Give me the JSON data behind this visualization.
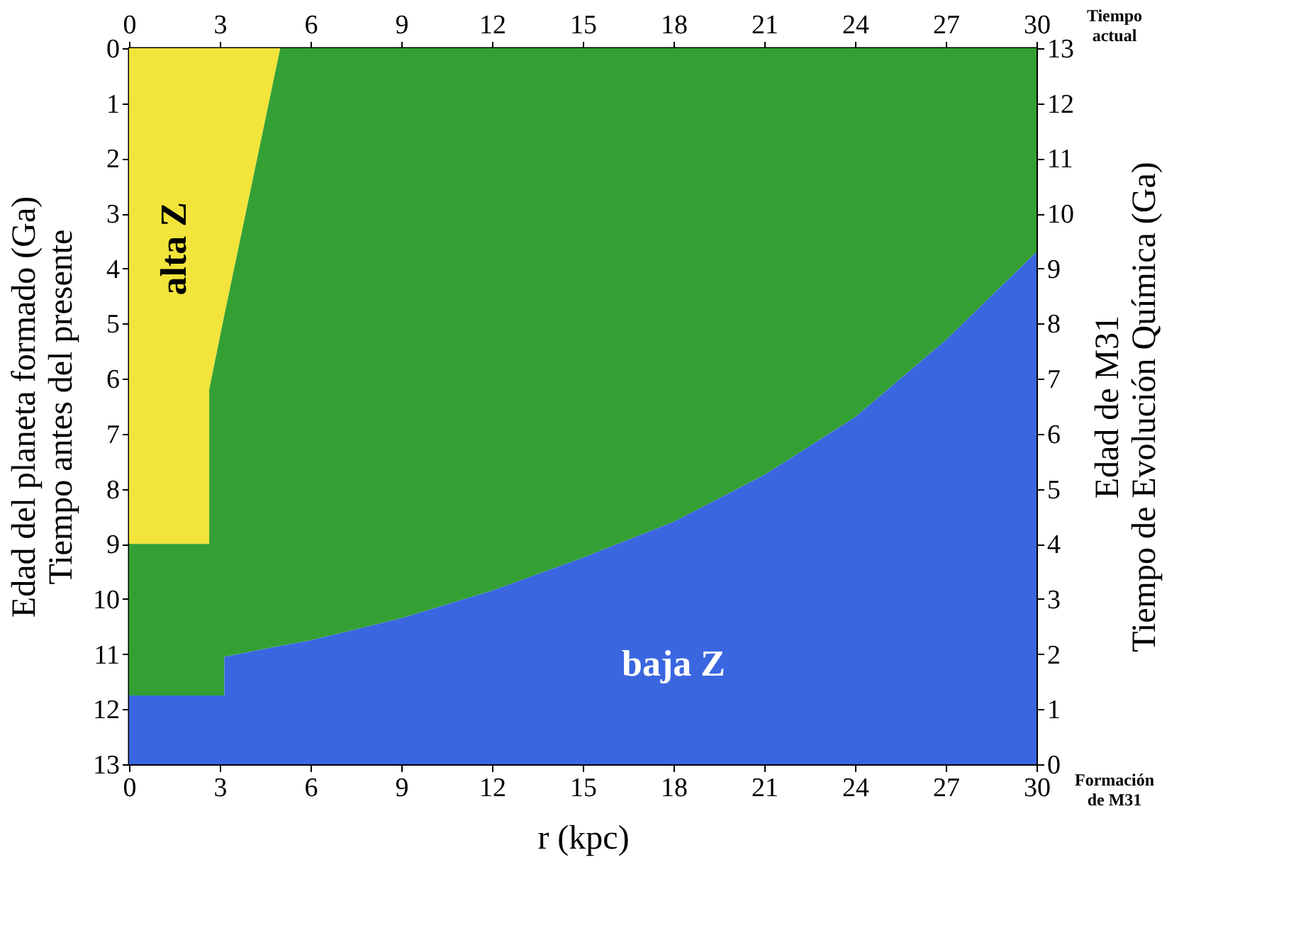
{
  "chart_data": {
    "type": "area",
    "stacked": true,
    "xlabel": "r (kpc)",
    "ylabel": "Edad del planeta formado (Ga)\nTiempo antes del presente",
    "y2label": "Edad de M31\nTiempo de Evolución Química (Ga)",
    "x": [
      0,
      2.65,
      2.65,
      3.15,
      3.15,
      5.0,
      6,
      9,
      12,
      15,
      18,
      21,
      24,
      27,
      30
    ],
    "series": [
      {
        "color": "#f2e43a",
        "values": [
          9,
          9,
          6.2,
          4.85,
          4.85,
          0,
          0,
          0,
          0,
          0,
          0,
          0,
          0,
          0,
          0
        ]
      },
      {
        "color": "#34a034",
        "values": [
          2.75,
          2.75,
          5.55,
          6.9,
          6.2,
          10.85,
          10.75,
          10.35,
          9.85,
          9.25,
          8.6,
          7.75,
          6.7,
          5.3,
          3.7
        ]
      },
      {
        "color": "#3a66e0",
        "values": [
          1.25,
          1.25,
          1.25,
          1.25,
          1.95,
          2.15,
          2.25,
          2.65,
          3.15,
          3.75,
          4.4,
          5.25,
          6.3,
          7.7,
          9.3
        ]
      }
    ],
    "xlim": [
      0,
      30
    ],
    "xticks": [
      0,
      3,
      6,
      9,
      12,
      15,
      18,
      21,
      24,
      27,
      30
    ],
    "x2lim": [
      0,
      30
    ],
    "x2ticks": [
      0,
      3,
      6,
      9,
      12,
      15,
      18,
      21,
      24,
      27,
      30
    ],
    "ylim": [
      13,
      0
    ],
    "yticks": [
      0,
      1,
      2,
      3,
      4,
      5,
      6,
      7,
      8,
      9,
      10,
      11,
      12,
      13
    ],
    "y2lim": [
      0,
      13
    ],
    "y2ticks": [
      0,
      1,
      2,
      3,
      4,
      5,
      6,
      7,
      8,
      9,
      10,
      11,
      12,
      13
    ],
    "annotations": [
      "alta Z",
      "baja Z",
      "Tiempo\nactual",
      "Formación\nde M31"
    ],
    "grid": false
  }
}
